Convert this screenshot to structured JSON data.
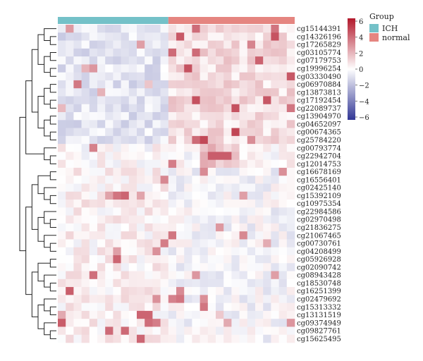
{
  "chart_data": {
    "type": "heatmap",
    "title": "",
    "annotation": {
      "title": "Group",
      "groups": [
        {
          "name": "ICH",
          "color": "#74c1c8",
          "count": 14
        },
        {
          "name": "normal",
          "color": "#e58580",
          "count": 16
        }
      ]
    },
    "colorbar": {
      "min": -6,
      "max": 6,
      "ticks": [
        "6",
        "4",
        "2",
        "0",
        "−2",
        "−4",
        "−6"
      ],
      "low_color": "#313695",
      "mid_color": "#ffffff",
      "high_color": "#b2182b"
    },
    "rows": [
      "cg15144391",
      "cg14326196",
      "cg17265829",
      "cg03105774",
      "cg07179753",
      "cg19996254",
      "cg03330490",
      "cg06970884",
      "cg13873813",
      "cg17192454",
      "cg22089737",
      "cg13904970",
      "cg04652097",
      "cg00674365",
      "cg25784220",
      "cg00793774",
      "cg22942704",
      "cg12014753",
      "cg16678169",
      "cg16556401",
      "cg02425140",
      "cg15392109",
      "cg10975354",
      "cg22984586",
      "cg02970498",
      "cg21836275",
      "cg21067465",
      "cg00730761",
      "cg04208499",
      "cg05926928",
      "cg02090742",
      "cg08943428",
      "cg18530748",
      "cg16251399",
      "cg02479692",
      "cg15313332",
      "cg13131519",
      "cg09374949",
      "cg09827761",
      "cg15625495"
    ],
    "n_columns": 30,
    "row_dendrogram": true
  }
}
